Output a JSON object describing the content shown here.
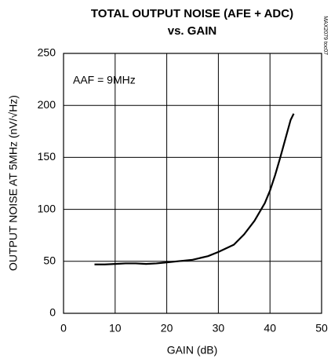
{
  "chart_data": {
    "type": "line",
    "title": [
      "TOTAL OUTPUT NOISE (AFE + ADC)",
      "vs. GAIN"
    ],
    "x_label": "GAIN (dB)",
    "y_label": "OUTPUT NOISE AT 5MHz (nV/√Hz)",
    "annotation": "AAF = 9MHz",
    "side_note": "MAX2079 toc07",
    "x": [
      6,
      8,
      10,
      12,
      14,
      16,
      18,
      20,
      22,
      25,
      28,
      30,
      33,
      35,
      37,
      39,
      40,
      41,
      42,
      43,
      44,
      44.6
    ],
    "values": [
      47,
      47,
      47.5,
      48,
      48,
      47.5,
      48,
      49,
      50,
      51.5,
      55,
      59,
      66,
      76,
      89,
      106,
      118,
      133,
      150,
      168,
      186,
      192
    ],
    "color": "#000000",
    "xlim": [
      0,
      50
    ],
    "xticks": [
      0,
      10,
      20,
      30,
      40,
      50
    ],
    "ylim": [
      0,
      250
    ],
    "yticks": [
      0,
      50,
      100,
      150,
      200,
      250
    ],
    "grid": true
  }
}
